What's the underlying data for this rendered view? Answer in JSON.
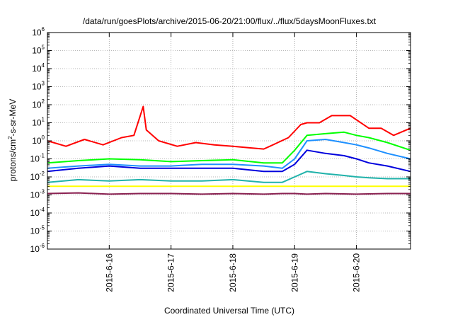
{
  "chart_data": {
    "type": "line",
    "title": "/data/run/goesPlots/archive/2015-06-20/21:00/flux/../flux/5daysMoonFluxes.txt",
    "xlabel": "Coordinated Universal Time (UTC)",
    "ylabel": {
      "pre": "protons/cm",
      "sup": "2",
      "post": "-s-sr-MeV"
    },
    "x_range": [
      "2015-06-15 00:00",
      "2015-06-20 21:00"
    ],
    "x_ticks": [
      "2015-6-16",
      "2015-6-17",
      "2015-6-18",
      "2015-6-19",
      "2015-6-20"
    ],
    "y_scale": "log",
    "ylim": [
      1e-06,
      1000000.0
    ],
    "y_ticks": [
      {
        "base": "10",
        "exp": "-6"
      },
      {
        "base": "10",
        "exp": "-5"
      },
      {
        "base": "10",
        "exp": "-4"
      },
      {
        "base": "10",
        "exp": "-3"
      },
      {
        "base": "10",
        "exp": "-2"
      },
      {
        "base": "10",
        "exp": "-1"
      },
      {
        "base": "10",
        "exp": "0"
      },
      {
        "base": "10",
        "exp": "1"
      },
      {
        "base": "10",
        "exp": "2"
      },
      {
        "base": "10",
        "exp": "3"
      },
      {
        "base": "10",
        "exp": "4"
      },
      {
        "base": "10",
        "exp": "5"
      },
      {
        "base": "10",
        "exp": "6"
      }
    ],
    "grid": true,
    "series": [
      {
        "color": "#ff0000",
        "x": [
          0,
          0.3,
          0.6,
          0.9,
          1.2,
          1.4,
          1.55,
          1.6,
          1.8,
          2.1,
          2.4,
          2.7,
          3.0,
          3.3,
          3.5,
          3.6,
          3.9,
          4.1,
          4.2,
          4.4,
          4.6,
          4.9,
          5.2,
          5.4,
          5.6,
          5.875
        ],
        "y": [
          1.0,
          0.5,
          1.2,
          0.6,
          1.5,
          2.0,
          80,
          4.0,
          1.0,
          0.5,
          0.8,
          0.6,
          0.5,
          0.4,
          0.35,
          0.5,
          1.5,
          8,
          10,
          10,
          25,
          25,
          5,
          5,
          2,
          5
        ]
      },
      {
        "color": "#00ff00",
        "x": [
          0,
          0.5,
          1.0,
          1.5,
          2.0,
          2.5,
          3.0,
          3.5,
          3.8,
          4.0,
          4.2,
          4.5,
          4.8,
          5.0,
          5.2,
          5.5,
          5.875
        ],
        "y": [
          0.06,
          0.08,
          0.1,
          0.09,
          0.07,
          0.08,
          0.09,
          0.06,
          0.06,
          0.3,
          2.0,
          2.5,
          3.0,
          2.0,
          1.5,
          0.8,
          0.3
        ]
      },
      {
        "color": "#1e90ff",
        "x": [
          0,
          0.5,
          1.0,
          1.5,
          2.0,
          2.5,
          3.0,
          3.5,
          3.8,
          4.0,
          4.2,
          4.5,
          4.8,
          5.0,
          5.2,
          5.5,
          5.875
        ],
        "y": [
          0.03,
          0.04,
          0.05,
          0.04,
          0.04,
          0.05,
          0.05,
          0.04,
          0.03,
          0.1,
          1.0,
          1.2,
          0.8,
          0.6,
          0.4,
          0.2,
          0.1
        ]
      },
      {
        "color": "#0000dd",
        "x": [
          0,
          0.5,
          1.0,
          1.5,
          2.0,
          2.5,
          3.0,
          3.5,
          3.8,
          4.0,
          4.2,
          4.5,
          4.8,
          5.0,
          5.2,
          5.5,
          5.875
        ],
        "y": [
          0.02,
          0.03,
          0.04,
          0.03,
          0.03,
          0.03,
          0.03,
          0.02,
          0.02,
          0.05,
          0.3,
          0.2,
          0.15,
          0.1,
          0.06,
          0.04,
          0.02
        ]
      },
      {
        "color": "#20b2aa",
        "x": [
          0,
          0.5,
          1.0,
          1.5,
          2.0,
          2.5,
          3.0,
          3.5,
          3.8,
          4.0,
          4.2,
          4.5,
          4.8,
          5.0,
          5.2,
          5.5,
          5.875
        ],
        "y": [
          0.005,
          0.007,
          0.006,
          0.007,
          0.006,
          0.006,
          0.007,
          0.005,
          0.005,
          0.01,
          0.02,
          0.015,
          0.012,
          0.01,
          0.009,
          0.008,
          0.008
        ]
      },
      {
        "color": "#ffff00",
        "x": [
          0,
          1.0,
          2.0,
          3.0,
          3.8,
          4.2,
          5.0,
          5.875
        ],
        "y": [
          0.003,
          0.003,
          0.003,
          0.003,
          0.003,
          0.003,
          0.003,
          0.003
        ]
      },
      {
        "color": "#8b2252",
        "x": [
          0,
          0.5,
          1.0,
          1.5,
          2.0,
          2.5,
          3.0,
          3.5,
          3.8,
          4.0,
          4.2,
          4.5,
          5.0,
          5.5,
          5.875
        ],
        "y": [
          0.0012,
          0.0013,
          0.0011,
          0.0012,
          0.0012,
          0.0011,
          0.0012,
          0.0011,
          0.0012,
          0.0012,
          0.0011,
          0.0012,
          0.0011,
          0.0012,
          0.0012
        ]
      }
    ]
  }
}
